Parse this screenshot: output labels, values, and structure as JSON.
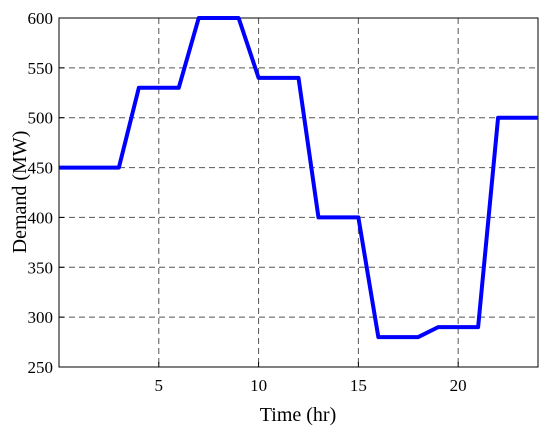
{
  "chart_data": {
    "type": "line",
    "xlabel": "Time (hr)",
    "ylabel": "Demand (MW)",
    "x": [
      0,
      1,
      2,
      3,
      4,
      5,
      6,
      7,
      8,
      9,
      10,
      11,
      12,
      13,
      14,
      15,
      16,
      17,
      18,
      19,
      20,
      21,
      22,
      23,
      24
    ],
    "series": [
      {
        "color": "#0000ff",
        "values": [
          450,
          450,
          450,
          450,
          530,
          530,
          530,
          600,
          600,
          600,
          540,
          540,
          540,
          400,
          400,
          400,
          280,
          280,
          280,
          290,
          290,
          290,
          500,
          500,
          500
        ]
      }
    ],
    "xlim": [
      0,
      24
    ],
    "xticks": [
      5,
      10,
      15,
      20
    ],
    "ylim": [
      250,
      600
    ],
    "yticks": [
      250,
      300,
      350,
      400,
      450,
      500,
      550,
      600
    ],
    "grid": true
  }
}
